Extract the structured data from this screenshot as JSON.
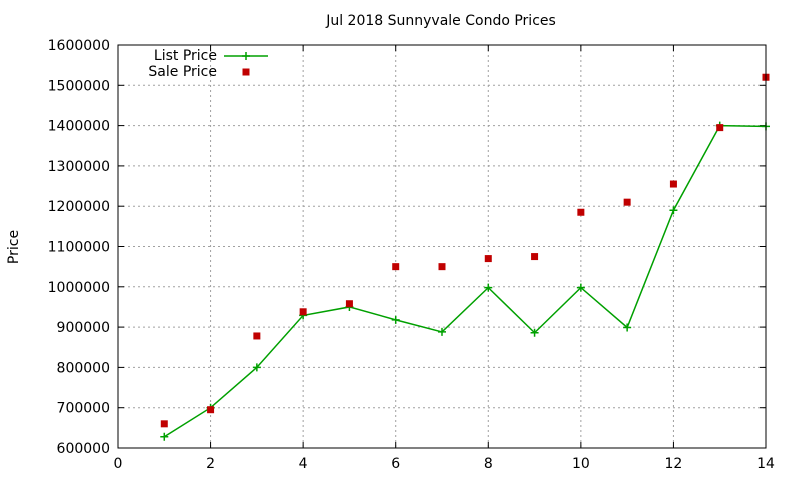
{
  "chart_data": {
    "type": "line",
    "title": "Jul 2018 Sunnyvale Condo Prices",
    "xlabel": "",
    "ylabel": "Price",
    "xlim": [
      0,
      14
    ],
    "ylim": [
      600000,
      1600000
    ],
    "x_ticks": [
      0,
      2,
      4,
      6,
      8,
      10,
      12,
      14
    ],
    "y_ticks": [
      600000,
      700000,
      800000,
      900000,
      1000000,
      1100000,
      1200000,
      1300000,
      1400000,
      1500000,
      1600000
    ],
    "grid": true,
    "legend_position": "top-left",
    "series": [
      {
        "name": "List Price",
        "style": "line-with-plus-markers",
        "color": "#00a000",
        "x": [
          1,
          2,
          3,
          4,
          5,
          6,
          7,
          8,
          9,
          10,
          11,
          12,
          13,
          14
        ],
        "values": [
          628000,
          700000,
          800000,
          929000,
          950000,
          918000,
          888000,
          998000,
          886000,
          998000,
          899000,
          1190000,
          1400000,
          1398000
        ]
      },
      {
        "name": "Sale Price",
        "style": "square-markers",
        "color": "#c00000",
        "x": [
          1,
          2,
          3,
          4,
          5,
          6,
          7,
          8,
          9,
          10,
          11,
          12,
          13,
          14
        ],
        "values": [
          660000,
          695000,
          878000,
          938000,
          958000,
          1050000,
          1050000,
          1070000,
          1075000,
          1185000,
          1210000,
          1255000,
          1395000,
          1520000
        ]
      }
    ]
  }
}
